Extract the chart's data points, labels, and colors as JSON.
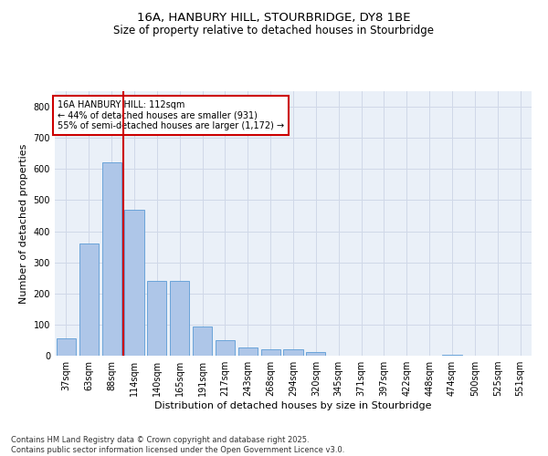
{
  "title_line1": "16A, HANBURY HILL, STOURBRIDGE, DY8 1BE",
  "title_line2": "Size of property relative to detached houses in Stourbridge",
  "xlabel": "Distribution of detached houses by size in Stourbridge",
  "ylabel": "Number of detached properties",
  "categories": [
    "37sqm",
    "63sqm",
    "88sqm",
    "114sqm",
    "140sqm",
    "165sqm",
    "191sqm",
    "217sqm",
    "243sqm",
    "268sqm",
    "294sqm",
    "320sqm",
    "345sqm",
    "371sqm",
    "397sqm",
    "422sqm",
    "448sqm",
    "474sqm",
    "500sqm",
    "525sqm",
    "551sqm"
  ],
  "values": [
    55,
    360,
    620,
    470,
    240,
    240,
    95,
    50,
    25,
    20,
    20,
    13,
    0,
    0,
    0,
    0,
    0,
    3,
    0,
    0,
    0
  ],
  "bar_color": "#aec6e8",
  "bar_edge_color": "#5b9bd5",
  "grid_color": "#d0d8e8",
  "bg_color": "#eaf0f8",
  "vline_color": "#cc0000",
  "vline_x_index": 3,
  "annotation_text": "16A HANBURY HILL: 112sqm\n← 44% of detached houses are smaller (931)\n55% of semi-detached houses are larger (1,172) →",
  "annotation_box_color": "#cc0000",
  "footnote": "Contains HM Land Registry data © Crown copyright and database right 2025.\nContains public sector information licensed under the Open Government Licence v3.0.",
  "ylim": [
    0,
    850
  ],
  "yticks": [
    0,
    100,
    200,
    300,
    400,
    500,
    600,
    700,
    800
  ],
  "title1_fontsize": 9.5,
  "title2_fontsize": 8.5,
  "xlabel_fontsize": 8,
  "ylabel_fontsize": 8,
  "tick_fontsize": 7,
  "annot_fontsize": 7,
  "footnote_fontsize": 6
}
